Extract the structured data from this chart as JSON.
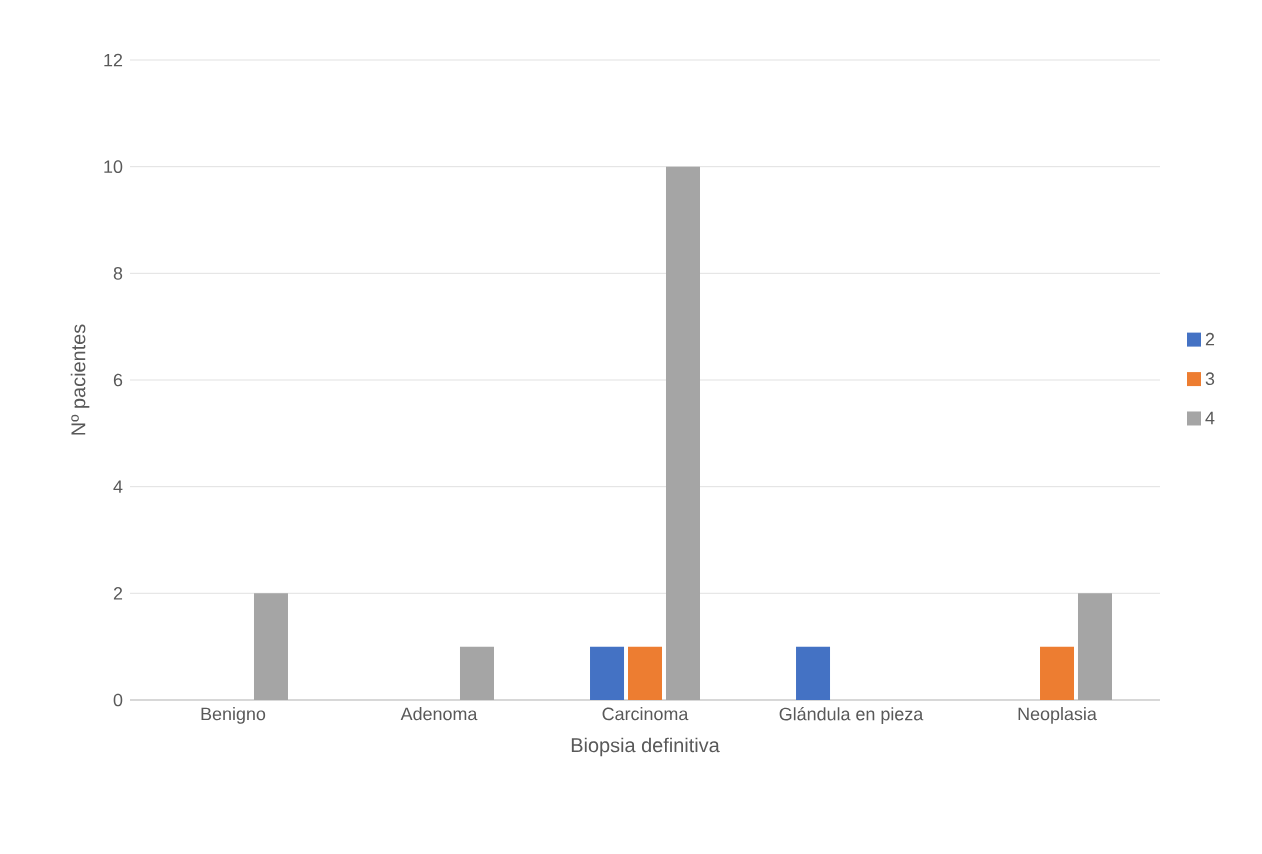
{
  "chart_data": {
    "type": "bar",
    "xlabel": "Biopsia definitiva",
    "ylabel": "Nº pacientes",
    "categories": [
      "Benigno",
      "Adenoma",
      "Carcinoma",
      "Glándula en pieza",
      "Neoplasia"
    ],
    "series": [
      {
        "name": "2",
        "color": "#4472c4",
        "values": [
          0,
          0,
          1,
          1,
          0
        ]
      },
      {
        "name": "3",
        "color": "#ed7d31",
        "values": [
          0,
          0,
          1,
          0,
          1
        ]
      },
      {
        "name": "4",
        "color": "#a5a5a5",
        "values": [
          2,
          1,
          10,
          0,
          2
        ]
      }
    ],
    "ylim": [
      0,
      12
    ],
    "yticks": [
      0,
      2,
      4,
      6,
      8,
      10,
      12
    ],
    "grid": "y",
    "legend": "right"
  }
}
